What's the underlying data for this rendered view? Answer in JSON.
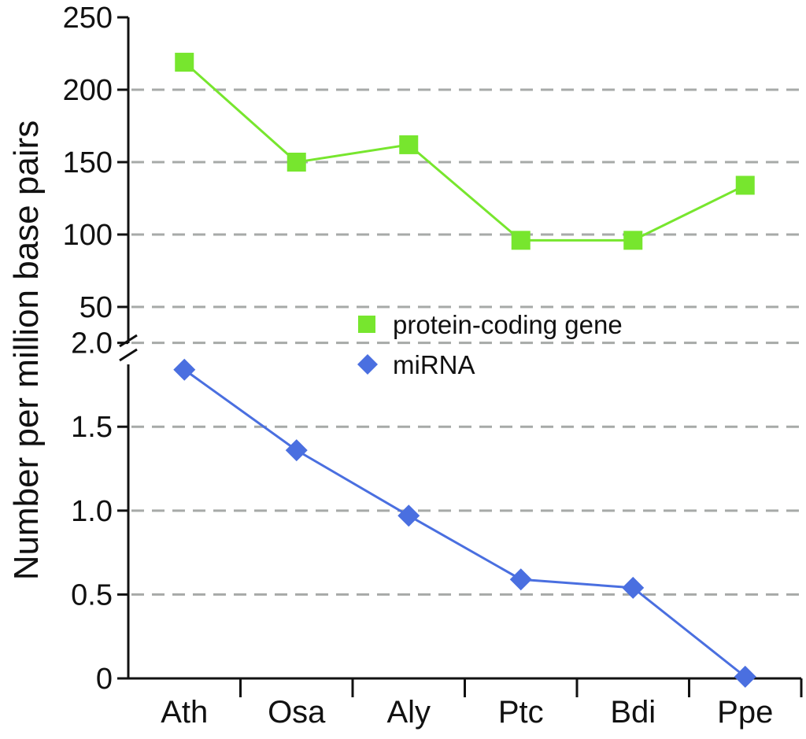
{
  "chart_data": {
    "type": "line",
    "categories": [
      "Ath",
      "Osa",
      "Aly",
      "Ptc",
      "Bdi",
      "Ppe"
    ],
    "ylabel": "Number per million base pairs",
    "xlabel": "",
    "grid": true,
    "y_axis_break": true,
    "legend_placement": "center-right",
    "upper_panel": {
      "ylim": [
        25,
        250
      ],
      "ticks": [
        "50",
        "100",
        "150",
        "200",
        "250"
      ],
      "tick_values": [
        50,
        100,
        150,
        200,
        250
      ]
    },
    "lower_panel": {
      "ylim": [
        0,
        2.2
      ],
      "ticks": [
        "0",
        "0.5",
        "1.0",
        "1.5",
        "2.0"
      ],
      "tick_values": [
        0,
        0.5,
        1.0,
        1.5,
        2.0
      ]
    },
    "series": [
      {
        "name": "protein-coding gene",
        "panel": "upper",
        "marker": "square",
        "color": "#77e62e",
        "values": [
          219,
          150,
          162,
          96,
          96,
          134
        ]
      },
      {
        "name": "miRNA",
        "panel": "lower",
        "marker": "diamond",
        "color": "#4a6fe0",
        "values": [
          1.84,
          1.36,
          0.97,
          0.59,
          0.54,
          0.01
        ]
      }
    ]
  }
}
